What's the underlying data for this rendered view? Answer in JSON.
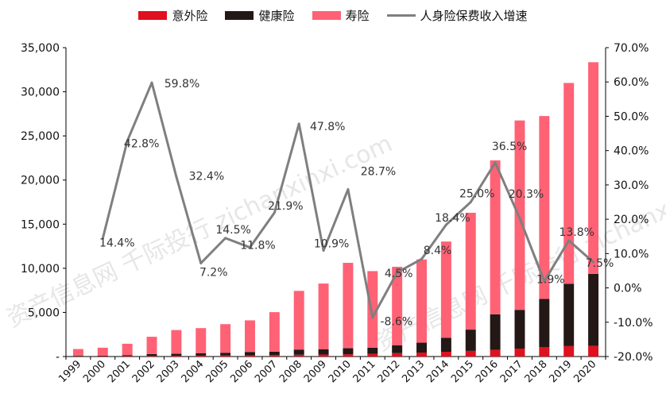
{
  "chart_data": {
    "type": "bar",
    "stacked": true,
    "categories": [
      "1999",
      "2000",
      "2001",
      "2002",
      "2003",
      "2004",
      "2005",
      "2006",
      "2007",
      "2008",
      "2009",
      "2010",
      "2011",
      "2012",
      "2013",
      "2014",
      "2015",
      "2016",
      "2017",
      "2018",
      "2019",
      "2020"
    ],
    "series": [
      {
        "name": "意外险",
        "color": "#e0101f",
        "axis": "left",
        "values": [
          30,
          40,
          50,
          60,
          70,
          100,
          120,
          140,
          170,
          200,
          230,
          260,
          300,
          390,
          450,
          540,
          640,
          750,
          900,
          1080,
          1180,
          1200
        ]
      },
      {
        "name": "健康险",
        "color": "#231815",
        "axis": "left",
        "values": [
          50,
          60,
          110,
          230,
          240,
          260,
          310,
          380,
          380,
          590,
          580,
          680,
          700,
          870,
          1120,
          1590,
          2410,
          4040,
          4390,
          5450,
          7070,
          8170
        ]
      },
      {
        "name": "寿险",
        "color": "#ff6275",
        "axis": "left",
        "values": [
          770,
          900,
          1290,
          1950,
          2690,
          2860,
          3240,
          3580,
          4480,
          6650,
          7460,
          9680,
          8680,
          8910,
          9430,
          10900,
          13240,
          17440,
          21460,
          20720,
          22750,
          23980
        ]
      },
      {
        "name": "人身险保费收入增速",
        "color": "#7f7f7f",
        "axis": "right",
        "type": "line",
        "values": [
          null,
          14.4,
          42.8,
          59.8,
          32.4,
          7.2,
          14.5,
          11.8,
          21.9,
          47.8,
          10.9,
          28.7,
          -8.6,
          4.5,
          8.4,
          18.4,
          25.0,
          36.5,
          20.3,
          1.9,
          13.8,
          7.5
        ]
      }
    ],
    "line_labels": [
      "",
      "14.4%",
      "42.8%",
      "59.8%",
      "32.4%",
      "7.2%",
      "14.5%",
      "11.8%",
      "21.9%",
      "47.8%",
      "10.9%",
      "28.7%",
      "-8.6%",
      "4.5%",
      "8.4%",
      "18.4%",
      "25.0%",
      "36.5%",
      "20.3%",
      "1.9%",
      "13.8%",
      "7.5%"
    ],
    "y_left": {
      "min": 0,
      "max": 35000,
      "ticks": [
        "-",
        "5,000",
        "10,000",
        "15,000",
        "20,000",
        "25,000",
        "30,000",
        "35,000"
      ]
    },
    "y_right": {
      "min": -20,
      "max": 70,
      "ticks": [
        "-20.0%",
        "-10.0%",
        "0.0%",
        "10.0%",
        "20.0%",
        "30.0%",
        "40.0%",
        "50.0%",
        "60.0%",
        "70.0%"
      ]
    },
    "legend_position": "top",
    "grid": false,
    "watermark": "资产信息网 千际投行 zichanxinxi.com"
  }
}
